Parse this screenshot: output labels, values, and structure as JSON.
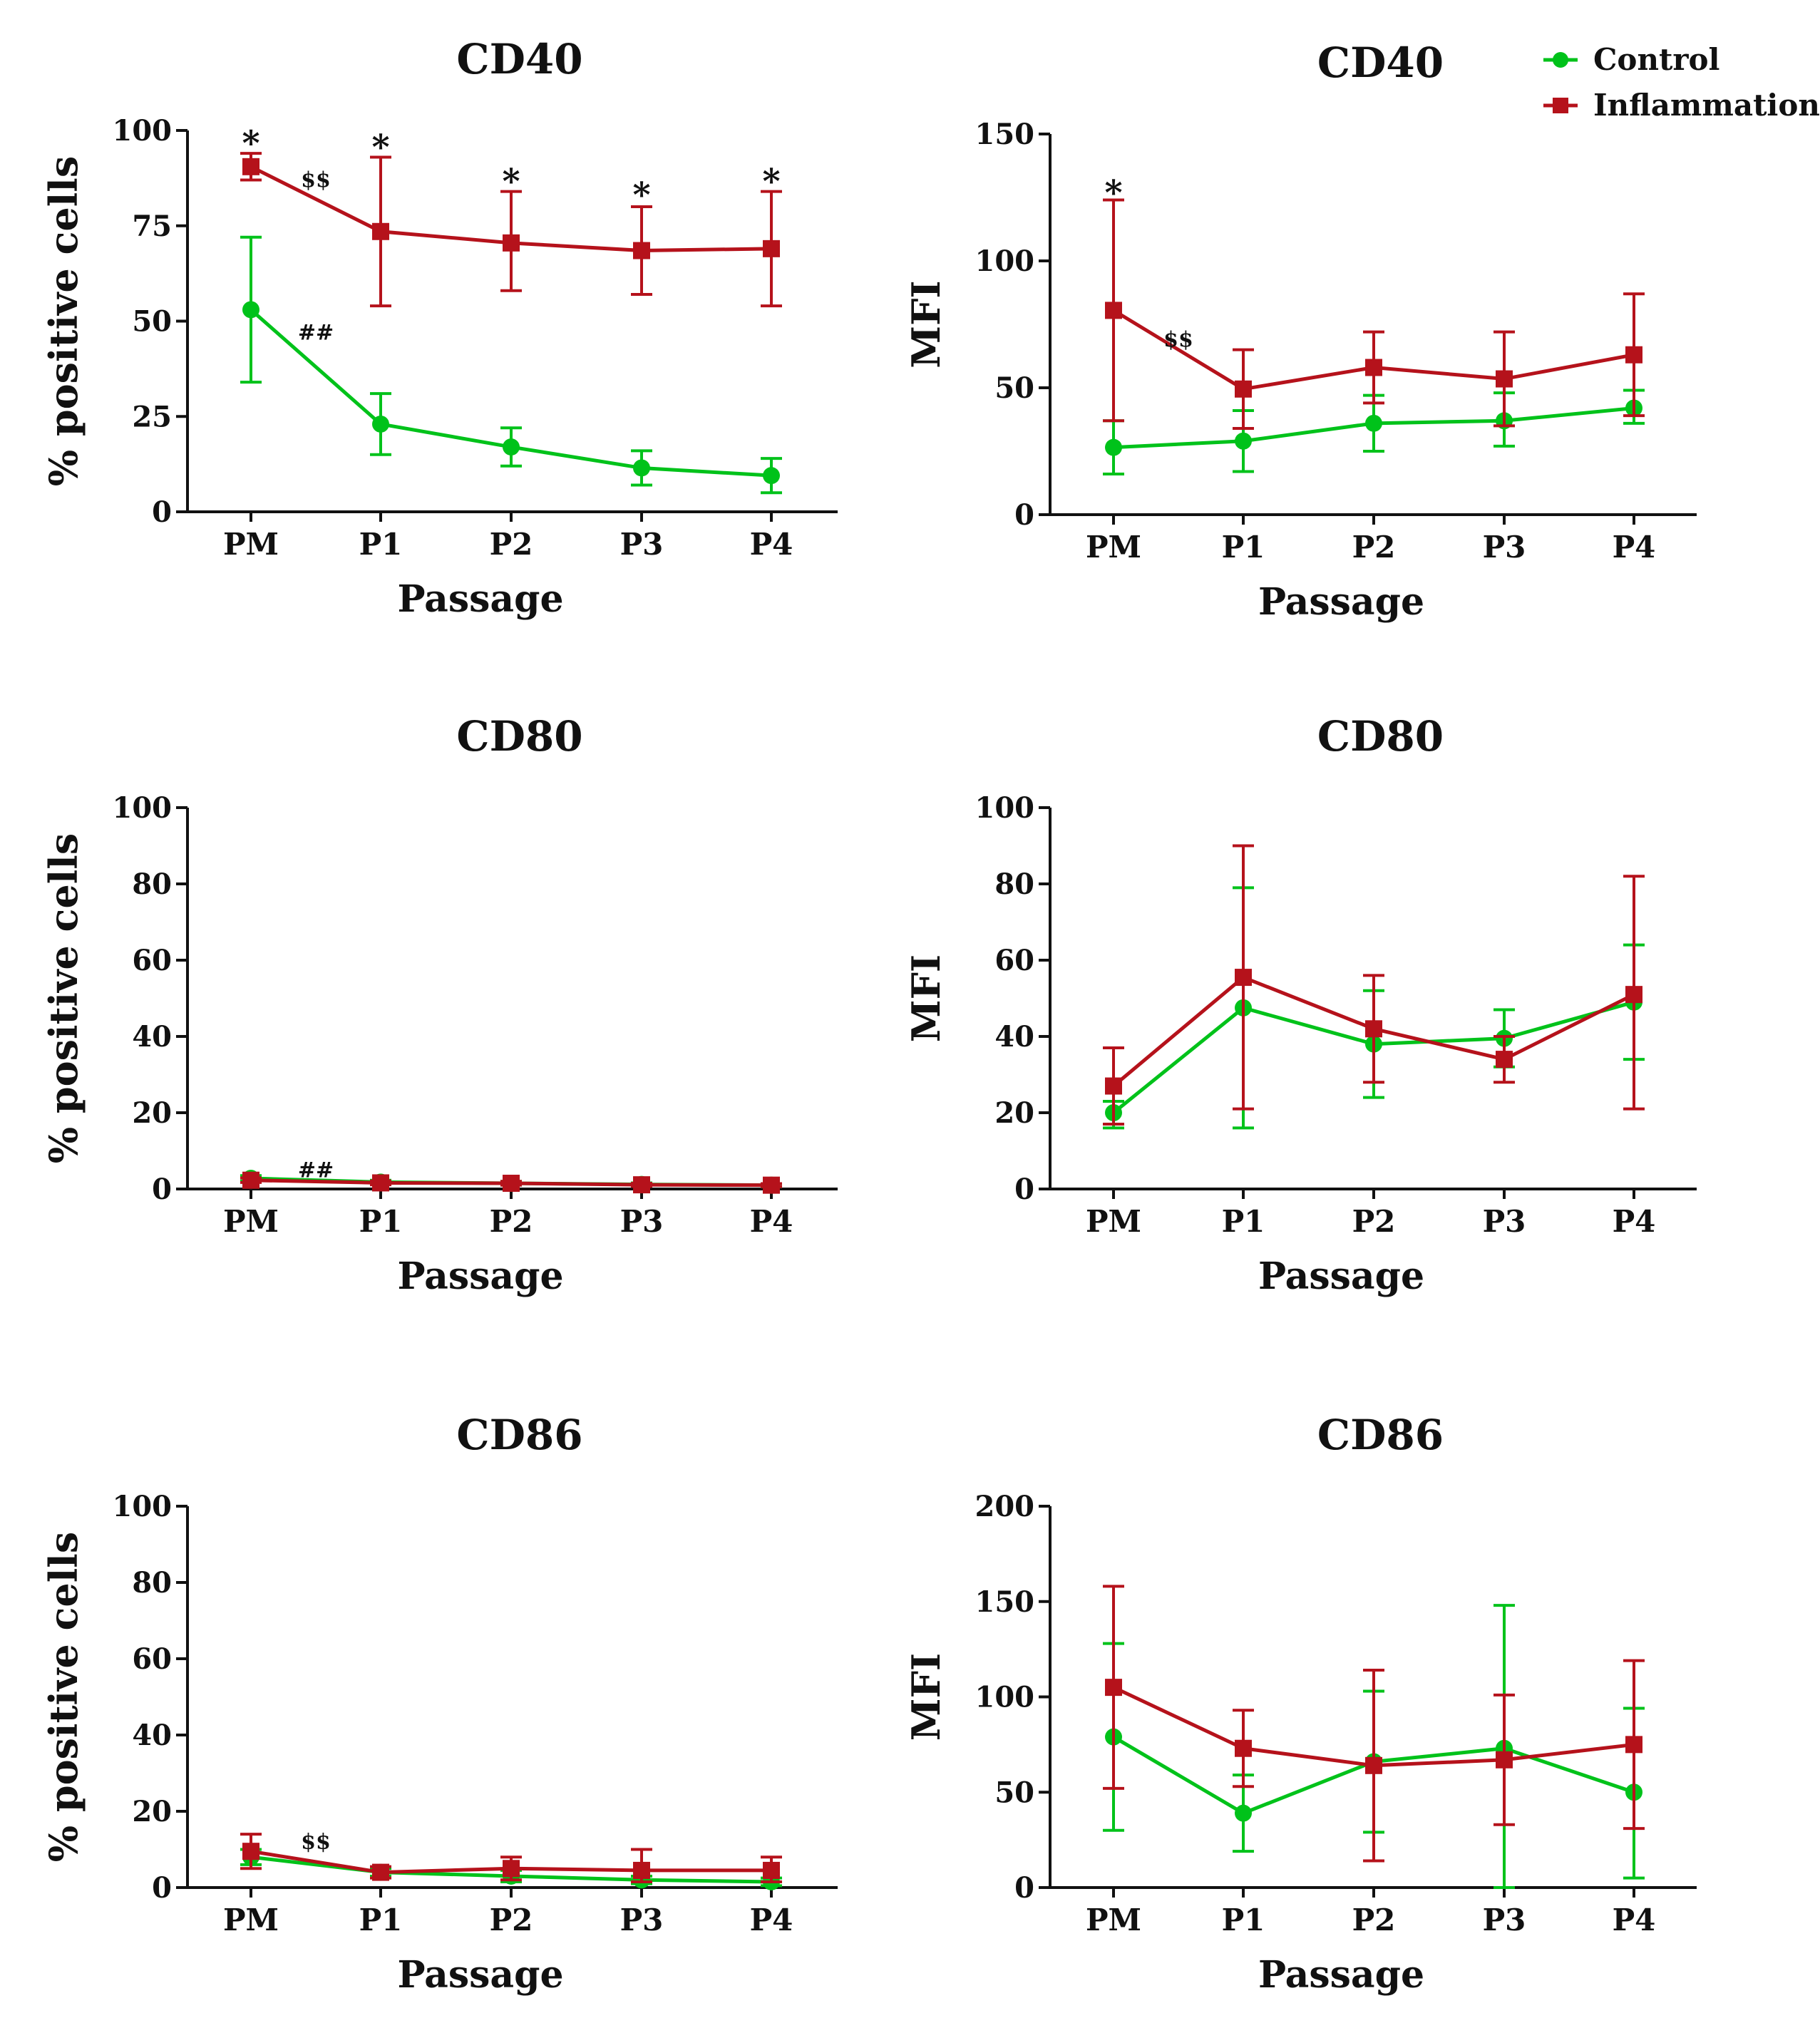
{
  "colors": {
    "control": "#00c21a",
    "inflammation": "#b5121b",
    "axis": "#111111"
  },
  "legend": {
    "control": "Control",
    "inflammation": "Inflammation"
  },
  "chart_data": [
    {
      "id": "cd40-pct",
      "type": "line",
      "title": "CD40",
      "xlabel": "Passage",
      "ylabel": "% positive cells",
      "categories": [
        "PM",
        "P1",
        "P2",
        "P3",
        "P4"
      ],
      "ylim": [
        0,
        100
      ],
      "yticks": [
        0,
        25,
        50,
        75,
        100
      ],
      "series": [
        {
          "name": "Control",
          "values": [
            53,
            23,
            17,
            11.5,
            9.5
          ],
          "err_hi": [
            72,
            31,
            22,
            16,
            14
          ],
          "err_lo": [
            34,
            15,
            12,
            7,
            5
          ]
        },
        {
          "name": "Inflammation",
          "values": [
            90.5,
            73.5,
            70.5,
            68.5,
            69
          ],
          "err_hi": [
            94,
            93,
            84,
            80,
            84
          ],
          "err_lo": [
            87,
            54,
            58,
            57,
            54
          ]
        }
      ],
      "annotations": [
        {
          "text": "*",
          "x": 0,
          "y": 98
        },
        {
          "text": "*",
          "x": 1,
          "y": 97
        },
        {
          "text": "*",
          "x": 2,
          "y": 88
        },
        {
          "text": "*",
          "x": 3,
          "y": 84.5
        },
        {
          "text": "*",
          "x": 4,
          "y": 88
        },
        {
          "text": "$$",
          "x": 0.5,
          "y": 87
        },
        {
          "text": "##",
          "x": 0.5,
          "y": 47
        }
      ]
    },
    {
      "id": "cd40-mfi",
      "type": "line",
      "title": "CD40",
      "xlabel": "Passage",
      "ylabel": "MFI",
      "categories": [
        "PM",
        "P1",
        "P2",
        "P3",
        "P4"
      ],
      "ylim": [
        0,
        150
      ],
      "yticks": [
        0,
        50,
        100,
        150
      ],
      "series": [
        {
          "name": "Control",
          "values": [
            26.5,
            29,
            36,
            37,
            42
          ],
          "err_hi": [
            37,
            41,
            47,
            48,
            49
          ],
          "err_lo": [
            16,
            17,
            25,
            27,
            36
          ]
        },
        {
          "name": "Inflammation",
          "values": [
            80.5,
            49.5,
            58,
            53.5,
            63
          ],
          "err_hi": [
            124,
            65,
            72,
            72,
            87
          ],
          "err_lo": [
            37,
            34,
            44,
            35,
            39
          ]
        }
      ],
      "annotations": [
        {
          "text": "*",
          "x": 0,
          "y": 129
        },
        {
          "text": "$$",
          "x": 0.5,
          "y": 69
        }
      ]
    },
    {
      "id": "cd80-pct",
      "type": "line",
      "title": "CD80",
      "xlabel": "Passage",
      "ylabel": "% positive cells",
      "categories": [
        "PM",
        "P1",
        "P2",
        "P3",
        "P4"
      ],
      "ylim": [
        0,
        100
      ],
      "yticks": [
        0,
        20,
        40,
        60,
        80,
        100
      ],
      "series": [
        {
          "name": "Control",
          "values": [
            2.8,
            1.8,
            1.5,
            1.2,
            1.0
          ],
          "err_hi": [
            3.5,
            2.3,
            2.0,
            1.6,
            1.4
          ],
          "err_lo": [
            2.1,
            1.3,
            1.0,
            0.8,
            0.6
          ]
        },
        {
          "name": "Inflammation",
          "values": [
            2.3,
            1.6,
            1.5,
            1.1,
            1.0
          ],
          "err_hi": [
            2.9,
            2.1,
            2.0,
            1.5,
            1.4
          ],
          "err_lo": [
            1.7,
            1.1,
            1.0,
            0.7,
            0.6
          ]
        }
      ],
      "annotations": [
        {
          "text": "##",
          "x": 0.5,
          "y": 5
        }
      ]
    },
    {
      "id": "cd80-mfi",
      "type": "line",
      "title": "CD80",
      "xlabel": "Passage",
      "ylabel": "MFI",
      "categories": [
        "PM",
        "P1",
        "P2",
        "P3",
        "P4"
      ],
      "ylim": [
        0,
        100
      ],
      "yticks": [
        0,
        20,
        40,
        60,
        80,
        100
      ],
      "series": [
        {
          "name": "Control",
          "values": [
            20,
            47.5,
            38,
            39.5,
            49
          ],
          "err_hi": [
            23,
            79,
            52,
            47,
            64
          ],
          "err_lo": [
            16,
            16,
            24,
            32,
            34
          ]
        },
        {
          "name": "Inflammation",
          "values": [
            27,
            55.5,
            42,
            34,
            51
          ],
          "err_hi": [
            37,
            90,
            56,
            40,
            82
          ],
          "err_lo": [
            17,
            21,
            28,
            28,
            21
          ]
        }
      ],
      "annotations": []
    },
    {
      "id": "cd86-pct",
      "type": "line",
      "title": "CD86",
      "xlabel": "Passage",
      "ylabel": "% positive cells",
      "categories": [
        "PM",
        "P1",
        "P2",
        "P3",
        "P4"
      ],
      "ylim": [
        0,
        100
      ],
      "yticks": [
        0,
        20,
        40,
        60,
        80,
        100
      ],
      "series": [
        {
          "name": "Control",
          "values": [
            8,
            4,
            3,
            2,
            1.5
          ],
          "err_hi": [
            10,
            5,
            4.5,
            3,
            2.5
          ],
          "err_lo": [
            6,
            3,
            1.5,
            1,
            0.5
          ]
        },
        {
          "name": "Inflammation",
          "values": [
            9.5,
            4,
            5,
            4.5,
            4.5
          ],
          "err_hi": [
            14,
            5.5,
            8,
            10,
            8
          ],
          "err_lo": [
            5,
            2.5,
            2,
            1.5,
            1.5
          ]
        }
      ],
      "annotations": [
        {
          "text": "$$",
          "x": 0.5,
          "y": 12
        }
      ]
    },
    {
      "id": "cd86-mfi",
      "type": "line",
      "title": "CD86",
      "xlabel": "Passage",
      "ylabel": "MFI",
      "categories": [
        "PM",
        "P1",
        "P2",
        "P3",
        "P4"
      ],
      "ylim": [
        0,
        200
      ],
      "yticks": [
        0,
        50,
        100,
        150,
        200
      ],
      "series": [
        {
          "name": "Control",
          "values": [
            79,
            39,
            66,
            73,
            50
          ],
          "err_hi": [
            128,
            59,
            103,
            148,
            94
          ],
          "err_lo": [
            30,
            19,
            29,
            0,
            5
          ]
        },
        {
          "name": "Inflammation",
          "values": [
            105,
            73,
            64,
            67,
            75
          ],
          "err_hi": [
            158,
            93,
            114,
            101,
            119
          ],
          "err_lo": [
            52,
            53,
            14,
            33,
            31
          ]
        }
      ],
      "annotations": []
    }
  ]
}
